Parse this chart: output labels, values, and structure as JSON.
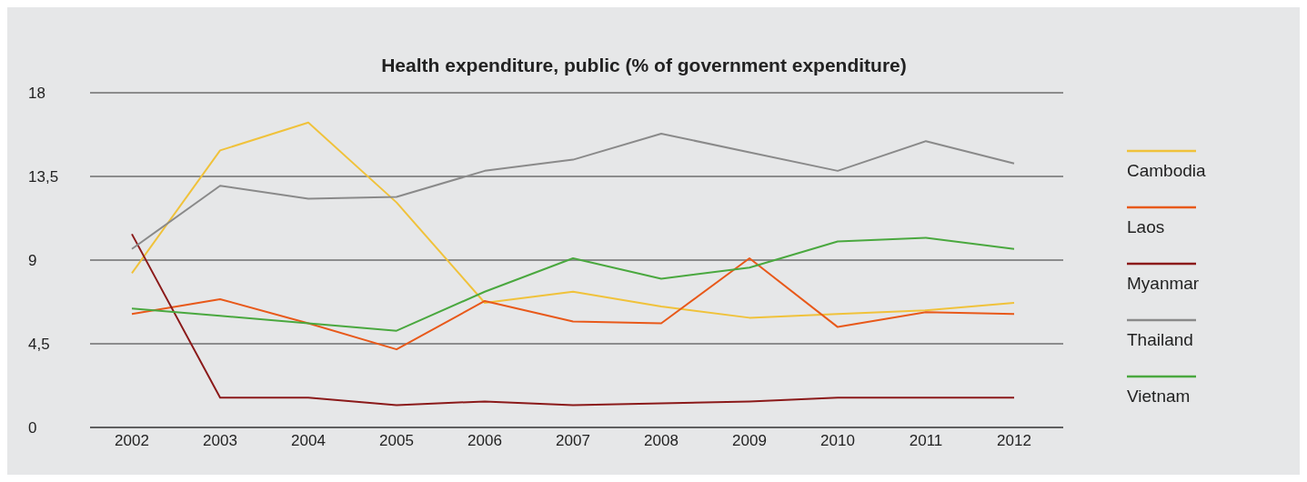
{
  "chart_data": {
    "type": "line",
    "title": "Health expenditure, public (% of government expenditure)",
    "categories": [
      "2002",
      "2003",
      "2004",
      "2005",
      "2006",
      "2007",
      "2008",
      "2009",
      "2010",
      "2011",
      "2012"
    ],
    "series": [
      {
        "name": "Cambodia",
        "color": "#f0c23b",
        "values": [
          8.3,
          14.9,
          16.4,
          12.1,
          6.7,
          7.3,
          6.5,
          5.9,
          6.1,
          6.3,
          6.7
        ]
      },
      {
        "name": "Laos",
        "color": "#e8591a",
        "values": [
          6.1,
          6.9,
          5.6,
          4.2,
          6.8,
          5.7,
          5.6,
          9.1,
          5.4,
          6.2,
          6.1
        ]
      },
      {
        "name": "Myanmar",
        "color": "#8b1a1a",
        "values": [
          10.4,
          1.6,
          1.6,
          1.2,
          1.4,
          1.2,
          1.3,
          1.4,
          1.6,
          1.6,
          1.6
        ]
      },
      {
        "name": "Thailand",
        "color": "#8a8a8a",
        "values": [
          9.6,
          13.0,
          12.3,
          12.4,
          13.8,
          14.4,
          15.8,
          14.8,
          13.8,
          15.4,
          14.2
        ]
      },
      {
        "name": "Vietnam",
        "color": "#4aa83f",
        "values": [
          6.4,
          6.0,
          5.6,
          5.2,
          7.3,
          9.1,
          8.0,
          8.6,
          10.0,
          10.2,
          9.6
        ]
      }
    ],
    "ylim": [
      0,
      18
    ],
    "yticks": [
      0,
      {
        "value": 4.5,
        "label": "4,5"
      },
      9,
      {
        "value": 13.5,
        "label": "13,5"
      },
      18
    ],
    "grid": "y",
    "legend": "right",
    "marker": "none",
    "line_style": "solid"
  }
}
